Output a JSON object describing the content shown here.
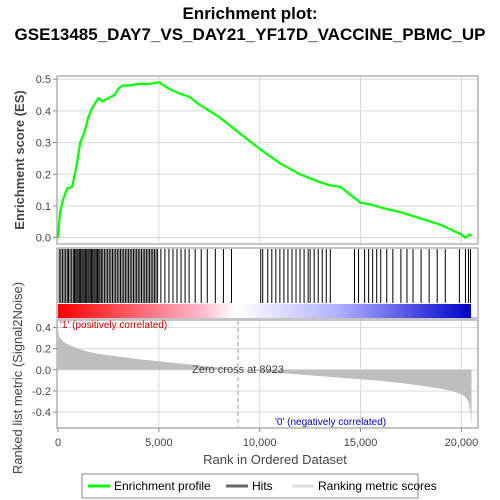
{
  "title": "Enrichment plot: GSE13485_DAY7_VS_DAY21_YF17D_VACCINE_PBMC_UP",
  "colors": {
    "es_line": "#00ff00",
    "hits": "#000000",
    "metric_fill": "#bebebe",
    "pos_label": "#cc0000",
    "neg_label": "#0000cc",
    "grid": "#d8d8d8"
  },
  "chart_data": [
    {
      "type": "line",
      "panel": "enrichment-profile",
      "ylabel": "Enrichment score (ES)",
      "xlim": [
        0,
        21000
      ],
      "ylim": [
        -0.02,
        0.51
      ],
      "yticks": [
        0.0,
        0.1,
        0.2,
        0.3,
        0.4,
        0.5
      ],
      "ytick_labels": [
        "0.0",
        "0.1",
        "0.2",
        "0.3",
        "0.4",
        "0.5"
      ],
      "grid": true,
      "series": [
        {
          "name": "Enrichment profile",
          "x": [
            0,
            100,
            250,
            450,
            700,
            900,
            1100,
            1300,
            1500,
            1700,
            1900,
            2000,
            2200,
            2500,
            2800,
            3000,
            3200,
            3500,
            4000,
            4500,
            5000,
            5500,
            6000,
            6500,
            7000,
            8000,
            9000,
            10000,
            11000,
            12000,
            13000,
            13500,
            14000,
            15000,
            15500,
            16000,
            17000,
            18000,
            18500,
            19000,
            19500,
            20000,
            20200,
            20400,
            20500
          ],
          "y": [
            0.0,
            0.08,
            0.12,
            0.155,
            0.16,
            0.22,
            0.3,
            0.33,
            0.38,
            0.41,
            0.43,
            0.44,
            0.43,
            0.44,
            0.45,
            0.47,
            0.48,
            0.48,
            0.485,
            0.485,
            0.49,
            0.47,
            0.455,
            0.445,
            0.42,
            0.38,
            0.33,
            0.28,
            0.235,
            0.2,
            0.175,
            0.165,
            0.16,
            0.11,
            0.105,
            0.095,
            0.08,
            0.06,
            0.05,
            0.04,
            0.025,
            0.01,
            0.0,
            0.01,
            0.005
          ]
        }
      ]
    },
    {
      "type": "scatter",
      "panel": "hits",
      "series": [
        {
          "name": "Hits",
          "x": [
            60,
            140,
            220,
            300,
            380,
            460,
            520,
            600,
            680,
            760,
            820,
            880,
            940,
            1000,
            1060,
            1120,
            1180,
            1240,
            1300,
            1360,
            1420,
            1480,
            1540,
            1600,
            1660,
            1720,
            1780,
            1840,
            1900,
            1960,
            2020,
            2080,
            2150,
            2220,
            2300,
            2380,
            2460,
            2540,
            2620,
            2700,
            2780,
            2860,
            2940,
            3020,
            3100,
            3180,
            3260,
            3340,
            3420,
            3500,
            3580,
            3660,
            3740,
            3820,
            3900,
            3980,
            4060,
            4140,
            4220,
            4300,
            4380,
            4460,
            4540,
            4620,
            4700,
            4780,
            4860,
            4940,
            5100,
            5300,
            5500,
            5700,
            5900,
            6100,
            6300,
            6500,
            6800,
            7100,
            7400,
            7800,
            8200,
            8600,
            10050,
            10150,
            10400,
            10600,
            10800,
            11000,
            11200,
            11400,
            11600,
            11800,
            12000,
            12200,
            12400,
            12500,
            12700,
            12900,
            13100,
            13300,
            13500,
            14700,
            14900,
            15200,
            15400,
            15600,
            15800,
            16000,
            16300,
            16600,
            17000,
            17300,
            17600,
            18000,
            18400,
            18800,
            19200,
            19900,
            20200,
            20350,
            20450
          ]
        }
      ]
    },
    {
      "type": "area",
      "panel": "ranked-list-metric",
      "ylabel": "Ranked list metric (Signal2Noise)",
      "xlabel": "Rank in Ordered Dataset",
      "xlim": [
        0,
        21000
      ],
      "ylim": [
        -0.55,
        0.47
      ],
      "xticks": [
        0,
        5000,
        10000,
        15000,
        20000
      ],
      "xtick_labels": [
        "0",
        "5,000",
        "10,000",
        "15,000",
        "20,000"
      ],
      "yticks": [
        -0.4,
        -0.2,
        0.0,
        0.2,
        0.4
      ],
      "ytick_labels": [
        "-0.4",
        "-0.2",
        "0.0",
        "0.2",
        "0.4"
      ],
      "zero_cross": 8923,
      "zero_cross_label": "Zero cross at 8923",
      "pos_label": "'1' (positively correlated)",
      "neg_label": "'0' (negatively correlated)",
      "series": [
        {
          "name": "Ranking metric scores",
          "x": [
            0,
            30,
            100,
            300,
            600,
            1000,
            1500,
            2000,
            3000,
            4000,
            5000,
            6000,
            7000,
            8000,
            8923,
            10000,
            11000,
            12000,
            13000,
            14000,
            15000,
            16000,
            17000,
            18000,
            19000,
            19500,
            20000,
            20200,
            20350,
            20450,
            20500
          ],
          "y": [
            0.4,
            0.33,
            0.3,
            0.26,
            0.23,
            0.2,
            0.17,
            0.15,
            0.125,
            0.1,
            0.08,
            0.06,
            0.04,
            0.02,
            0.0,
            -0.015,
            -0.03,
            -0.045,
            -0.06,
            -0.075,
            -0.09,
            -0.105,
            -0.125,
            -0.15,
            -0.18,
            -0.2,
            -0.23,
            -0.26,
            -0.3,
            -0.4,
            -0.53
          ]
        }
      ]
    }
  ],
  "legend": {
    "items": [
      {
        "label": "Enrichment profile"
      },
      {
        "label": "Hits"
      },
      {
        "label": "Ranking metric scores"
      }
    ]
  }
}
